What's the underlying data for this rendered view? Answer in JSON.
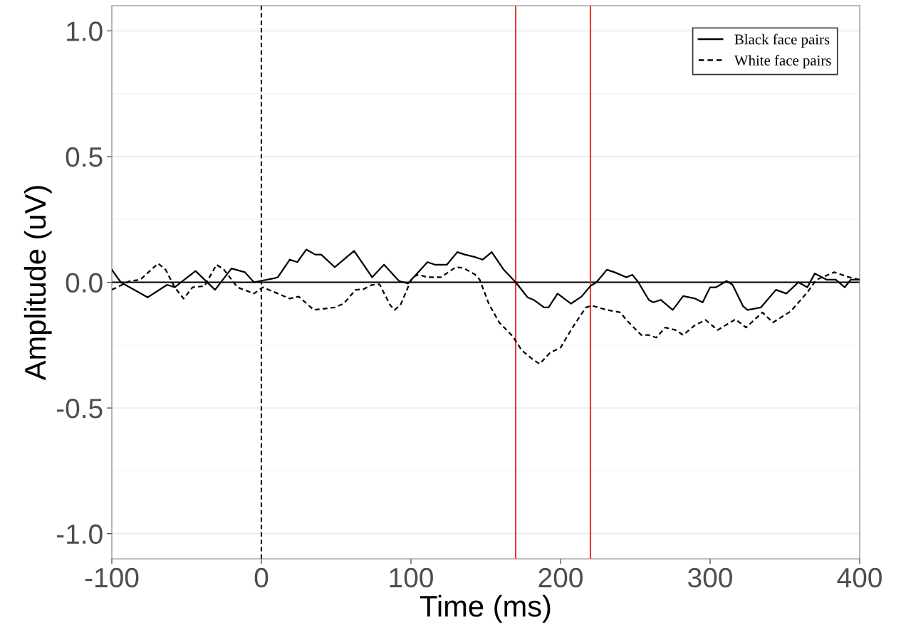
{
  "chart_data": {
    "type": "line",
    "xlabel": "Time (ms)",
    "ylabel": "Amplitude (uV)",
    "xlim": [
      -100,
      400
    ],
    "xticks": [
      -100,
      0,
      100,
      200,
      300,
      400
    ],
    "ylim": [
      -1.1,
      1.1
    ],
    "yticks": [
      {
        "value": -1.0,
        "label": "-1.0"
      },
      {
        "value": -0.5,
        "label": "-0.5"
      },
      {
        "value": 0.0,
        "label": "0.0"
      },
      {
        "value": 0.5,
        "label": "0.5"
      },
      {
        "value": 1.0,
        "label": "1.0"
      }
    ],
    "grid": "y",
    "legend": "top right",
    "marker": "none",
    "ref_lines": [
      {
        "axis": "y",
        "value": 0,
        "color": "#000000",
        "line_style": "solid"
      },
      {
        "axis": "x",
        "value": 0,
        "color": "#000000",
        "line_style": "dashed"
      },
      {
        "axis": "x",
        "value": 170,
        "color": "#e8392d",
        "line_style": "solid"
      },
      {
        "axis": "x",
        "value": 220,
        "color": "#e8392d",
        "line_style": "solid"
      }
    ],
    "series": [
      {
        "name": "Black face pairs",
        "color": "#000000",
        "line_style": "solid",
        "x": [
          -100,
          -94,
          -76,
          -63,
          -58,
          -44,
          -31,
          -20,
          -11,
          -5,
          8,
          11,
          19,
          24,
          30,
          36,
          40,
          49,
          62,
          74,
          82,
          92,
          98,
          111,
          116,
          124,
          131,
          136,
          143,
          148,
          154,
          162,
          170,
          178,
          182,
          189,
          192,
          198,
          207,
          214,
          220,
          224,
          231,
          236,
          244,
          248,
          252,
          259,
          262,
          267,
          275,
          282,
          290,
          295,
          300,
          304,
          311,
          315,
          322,
          325,
          334,
          344,
          351,
          359,
          365,
          370,
          378,
          384,
          390,
          394,
          400
        ],
        "values": [
          0.05,
          0.0,
          -0.06,
          -0.01,
          -0.02,
          0.045,
          -0.03,
          0.055,
          0.04,
          0.0,
          0.015,
          0.02,
          0.09,
          0.08,
          0.13,
          0.11,
          0.11,
          0.06,
          0.125,
          0.02,
          0.07,
          0.005,
          -0.005,
          0.08,
          0.07,
          0.07,
          0.12,
          0.11,
          0.1,
          0.09,
          0.12,
          0.05,
          0.0,
          -0.06,
          -0.07,
          -0.1,
          -0.1,
          -0.045,
          -0.085,
          -0.057,
          -0.015,
          0.0,
          0.05,
          0.04,
          0.02,
          0.03,
          0.0,
          -0.07,
          -0.08,
          -0.07,
          -0.11,
          -0.055,
          -0.065,
          -0.08,
          -0.02,
          -0.02,
          0.005,
          -0.01,
          -0.095,
          -0.11,
          -0.1,
          -0.03,
          -0.045,
          0.0,
          -0.02,
          0.035,
          0.01,
          0.01,
          -0.02,
          0.01,
          0.01
        ]
      },
      {
        "name": "White face pairs",
        "color": "#000000",
        "line_style": "dashed",
        "x": [
          -100,
          -88,
          -81,
          -69,
          -64,
          -58,
          -52,
          -46,
          -38,
          -30,
          -25,
          -16,
          -5,
          1,
          11,
          19,
          25,
          35,
          49,
          55,
          63,
          68,
          74,
          79,
          86,
          89,
          93,
          98,
          101,
          105,
          111,
          120,
          130,
          135,
          143,
          146,
          152,
          159,
          168,
          174,
          181,
          186,
          193,
          200,
          208,
          217,
          221,
          231,
          240,
          244,
          254,
          259,
          264,
          270,
          277,
          282,
          290,
          297,
          305,
          317,
          324,
          335,
          342,
          354,
          365,
          371,
          383,
          393,
          400
        ],
        "values": [
          -0.03,
          0.005,
          0.01,
          0.075,
          0.05,
          -0.02,
          -0.065,
          -0.02,
          -0.015,
          0.07,
          0.05,
          -0.02,
          -0.045,
          -0.02,
          -0.045,
          -0.065,
          -0.057,
          -0.11,
          -0.1,
          -0.085,
          -0.03,
          -0.028,
          -0.01,
          -0.008,
          -0.09,
          -0.11,
          -0.09,
          -0.02,
          0.02,
          0.03,
          0.02,
          0.02,
          0.06,
          0.057,
          0.03,
          0.01,
          -0.085,
          -0.16,
          -0.215,
          -0.27,
          -0.305,
          -0.325,
          -0.28,
          -0.26,
          -0.18,
          -0.1,
          -0.093,
          -0.11,
          -0.12,
          -0.15,
          -0.21,
          -0.21,
          -0.22,
          -0.18,
          -0.19,
          -0.21,
          -0.17,
          -0.15,
          -0.19,
          -0.147,
          -0.18,
          -0.12,
          -0.16,
          -0.115,
          -0.04,
          0.01,
          0.04,
          0.02,
          0.01
        ]
      }
    ]
  }
}
